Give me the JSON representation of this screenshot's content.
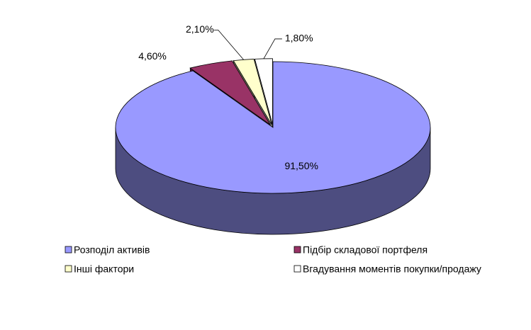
{
  "chart_data": {
    "type": "pie3d",
    "categories": [
      "Розподіл активів",
      "Підбір складової портфеля",
      "Інші фактори",
      "Вгадування моментів покупки/продажу"
    ],
    "values": [
      91.5,
      4.6,
      2.1,
      1.8
    ],
    "value_labels": [
      "91,50%",
      "4,60%",
      "2,10%",
      "1,80%"
    ],
    "colors": [
      "#9999ff",
      "#993366",
      "#ffffcc",
      "#ffffff"
    ],
    "legend": "bottom"
  }
}
